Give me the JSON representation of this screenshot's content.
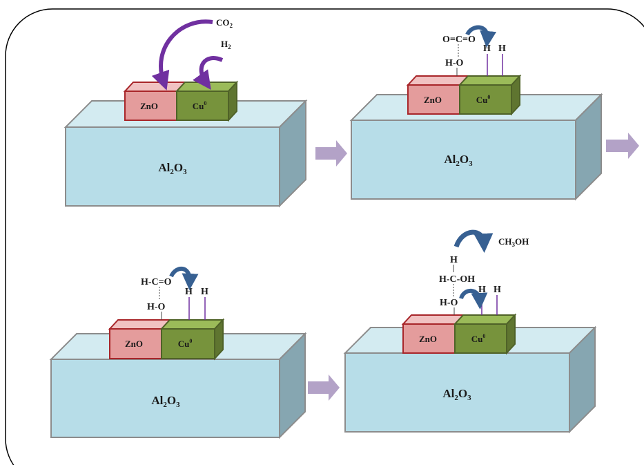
{
  "colors": {
    "substrate_front": "#b7dde8",
    "substrate_top": "#d3ebf1",
    "substrate_side": "#86a6b1",
    "substrate_edge": "#8c8c8c",
    "zno_front": "#e49c9c",
    "zno_top": "#f1c2c2",
    "zno_edge": "#a8262a",
    "cu_front": "#77933c",
    "cu_top": "#9bbb59",
    "cu_edge": "#4f6228",
    "process_arrow": "#b3a2c7",
    "curved_arrow_purple": "#7030a0",
    "curved_arrow_blue": "#376092",
    "bond_line": "#7030a0",
    "frame": "#000000"
  },
  "panels": [
    {
      "substrate": {
        "pre": "Al",
        "s1": "2",
        "mid": "O",
        "s2": "3"
      },
      "zno_label": "ZnO",
      "cu_label": {
        "base": "Cu",
        "sup": "0"
      },
      "molecules": [
        {
          "base": "CO",
          "sub": "2"
        },
        {
          "base": "H",
          "sub": "2"
        }
      ]
    },
    {
      "substrate": {
        "pre": "Al",
        "s1": "2",
        "mid": "O",
        "s2": "3"
      },
      "zno_label": "ZnO",
      "cu_label": {
        "base": "Cu",
        "sup": "0"
      },
      "labels": [
        "O=C=O",
        "H-O",
        "H",
        "H"
      ]
    },
    {
      "substrate": {
        "pre": "Al",
        "s1": "2",
        "mid": "O",
        "s2": "3"
      },
      "zno_label": "ZnO",
      "cu_label": {
        "base": "Cu",
        "sup": "0"
      },
      "labels": [
        "H-C=O",
        "H-O",
        "H",
        "H"
      ]
    },
    {
      "substrate": {
        "pre": "Al",
        "s1": "2",
        "mid": "O",
        "s2": "3"
      },
      "zno_label": "ZnO",
      "cu_label": {
        "base": "Cu",
        "sup": "0"
      },
      "labels": [
        "H",
        "H-C-OH",
        "H-O",
        "H",
        "H"
      ],
      "product": {
        "pre": "CH",
        "sub": "3",
        "post": "OH"
      }
    }
  ]
}
